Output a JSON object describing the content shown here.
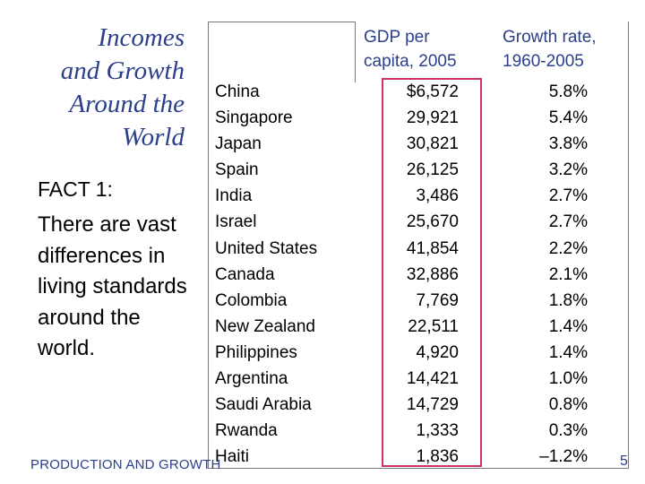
{
  "title_lines": [
    "Incomes",
    "and Growth",
    "Around the",
    "World"
  ],
  "fact_heading": "FACT 1:",
  "fact_body": "There are vast differences in living standards around the world.",
  "table": {
    "header_gdp": [
      "GDP per",
      "capita, 2005"
    ],
    "header_growth": [
      "Growth rate,",
      "1960-2005"
    ],
    "rows": [
      {
        "country": "China",
        "gdp": "$6,572",
        "growth": "5.8%"
      },
      {
        "country": "Singapore",
        "gdp": "29,921",
        "growth": "5.4%"
      },
      {
        "country": "Japan",
        "gdp": "30,821",
        "growth": "3.8%"
      },
      {
        "country": "Spain",
        "gdp": "26,125",
        "growth": "3.2%"
      },
      {
        "country": "India",
        "gdp": "3,486",
        "growth": "2.7%"
      },
      {
        "country": "Israel",
        "gdp": "25,670",
        "growth": "2.7%"
      },
      {
        "country": "United States",
        "gdp": "41,854",
        "growth": "2.2%"
      },
      {
        "country": "Canada",
        "gdp": "32,886",
        "growth": "2.1%"
      },
      {
        "country": "Colombia",
        "gdp": "7,769",
        "growth": "1.8%"
      },
      {
        "country": "New Zealand",
        "gdp": "22,511",
        "growth": "1.4%"
      },
      {
        "country": "Philippines",
        "gdp": "4,920",
        "growth": "1.4%"
      },
      {
        "country": "Argentina",
        "gdp": "14,421",
        "growth": "1.0%"
      },
      {
        "country": "Saudi Arabia",
        "gdp": "14,729",
        "growth": "0.8%"
      },
      {
        "country": "Rwanda",
        "gdp": "1,333",
        "growth": "0.3%"
      },
      {
        "country": "Haiti",
        "gdp": "1,836",
        "growth": "–1.2%"
      }
    ]
  },
  "footer": "PRODUCTION AND GROWTH",
  "page_number": "5",
  "colors": {
    "title": "#2b3f8a",
    "highlight_border": "#cc3366"
  }
}
